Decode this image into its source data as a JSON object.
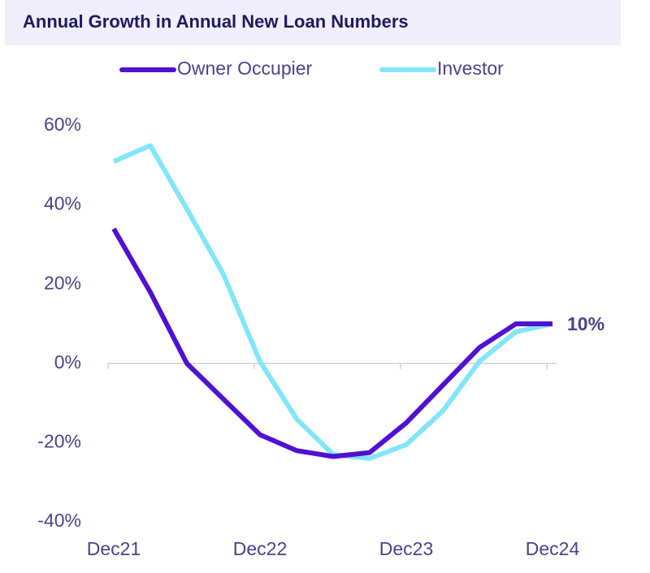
{
  "chart_data": {
    "type": "line",
    "title": "Annual Growth in Annual New Loan Numbers",
    "categories": [
      "Dec21",
      null,
      null,
      null,
      "Dec22",
      null,
      null,
      null,
      "Dec23",
      null,
      null,
      null,
      "Dec24"
    ],
    "series": [
      {
        "name": "Owner Occupier",
        "color": "#5011d2",
        "values": [
          34,
          18,
          0,
          -9,
          -18,
          -22,
          -23.5,
          -22.5,
          -15,
          -5.5,
          4,
          10,
          10
        ],
        "value_labels": [
          null,
          null,
          null,
          null,
          null,
          null,
          null,
          null,
          null,
          null,
          null,
          null,
          "10%"
        ]
      },
      {
        "name": "Investor",
        "color": "#82e5f9",
        "values": [
          51,
          55,
          39,
          22.5,
          0.5,
          -14,
          -23,
          -24,
          -20.5,
          -12,
          0.5,
          8,
          10
        ]
      }
    ],
    "ylim": [
      -40,
      60
    ],
    "yticks": [
      {
        "value": -40,
        "label": "-40%"
      },
      {
        "value": -20,
        "label": "-20%"
      },
      {
        "value": 0,
        "label": "0%"
      },
      {
        "value": 20,
        "label": "20%"
      },
      {
        "value": 40,
        "label": "40%"
      },
      {
        "value": 60,
        "label": "60%"
      }
    ],
    "legend": "top"
  }
}
